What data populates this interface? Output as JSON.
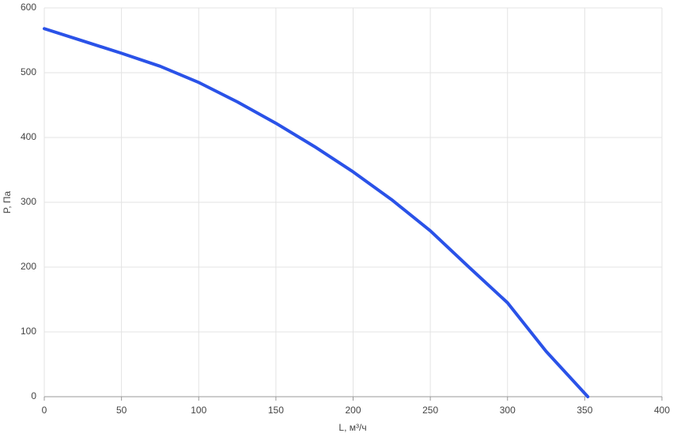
{
  "chart_data": {
    "type": "line",
    "x_label": "L, м³/ч",
    "y_label": "P, Па",
    "x": [
      0,
      25,
      50,
      75,
      100,
      125,
      150,
      175,
      200,
      225,
      250,
      275,
      300,
      325,
      352
    ],
    "values": [
      568,
      549,
      530,
      510,
      485,
      455,
      422,
      386,
      347,
      304,
      256,
      200,
      145,
      70,
      0
    ],
    "color": "#2a52e8",
    "xlim": [
      0,
      400
    ],
    "xticks": [
      0,
      50,
      100,
      150,
      200,
      250,
      300,
      350,
      400
    ],
    "ylim": [
      0,
      600
    ],
    "yticks": [
      0,
      100,
      200,
      300,
      400,
      500,
      600
    ],
    "grid": true
  }
}
